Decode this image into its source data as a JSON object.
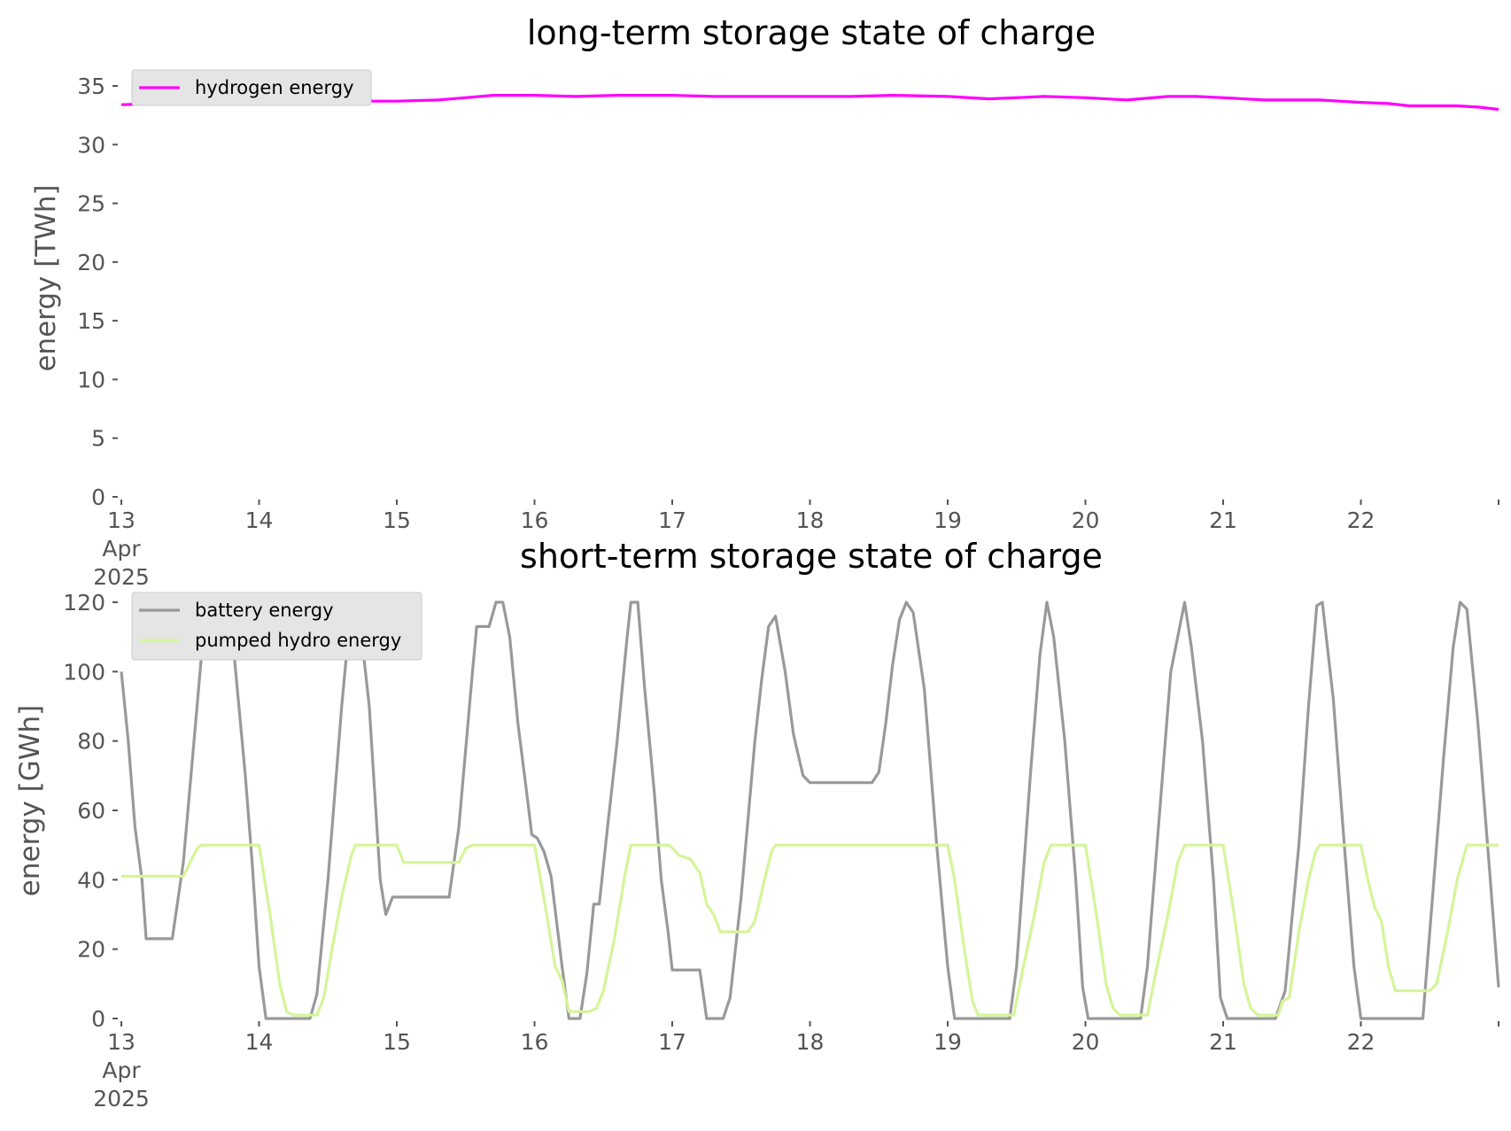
{
  "chart_data": [
    {
      "type": "line",
      "title": "long-term storage state of charge",
      "xlabel": "",
      "ylabel": "energy [TWh]",
      "ylim": [
        0,
        35
      ],
      "yticks": [
        0,
        5,
        10,
        15,
        20,
        25,
        30,
        35
      ],
      "xlim_days": [
        13,
        23
      ],
      "xticks": [
        {
          "day": 13,
          "label": [
            "13",
            "Apr",
            "2025"
          ]
        },
        {
          "day": 14,
          "label": [
            "14"
          ]
        },
        {
          "day": 15,
          "label": [
            "15"
          ]
        },
        {
          "day": 16,
          "label": [
            "16"
          ]
        },
        {
          "day": 17,
          "label": [
            "17"
          ]
        },
        {
          "day": 18,
          "label": [
            "18"
          ]
        },
        {
          "day": 19,
          "label": [
            "19"
          ]
        },
        {
          "day": 20,
          "label": [
            "20"
          ]
        },
        {
          "day": 21,
          "label": [
            "21"
          ]
        },
        {
          "day": 22,
          "label": [
            "22"
          ]
        },
        {
          "day": 23,
          "label": [
            ""
          ]
        }
      ],
      "grid": false,
      "legend_position": "top-left",
      "series": [
        {
          "name": "hydrogen energy",
          "color": "#ff00ff",
          "points": [
            [
              13.0,
              33.4
            ],
            [
              13.5,
              33.6
            ],
            [
              14.0,
              33.7
            ],
            [
              14.5,
              33.7
            ],
            [
              15.0,
              33.7
            ],
            [
              15.3,
              33.8
            ],
            [
              15.5,
              34.0
            ],
            [
              15.7,
              34.2
            ],
            [
              16.0,
              34.2
            ],
            [
              16.3,
              34.1
            ],
            [
              16.6,
              34.2
            ],
            [
              17.0,
              34.2
            ],
            [
              17.3,
              34.1
            ],
            [
              17.6,
              34.1
            ],
            [
              18.0,
              34.1
            ],
            [
              18.3,
              34.1
            ],
            [
              18.6,
              34.2
            ],
            [
              19.0,
              34.1
            ],
            [
              19.3,
              33.9
            ],
            [
              19.5,
              34.0
            ],
            [
              19.7,
              34.1
            ],
            [
              20.0,
              34.0
            ],
            [
              20.3,
              33.8
            ],
            [
              20.6,
              34.1
            ],
            [
              20.8,
              34.1
            ],
            [
              21.0,
              34.0
            ],
            [
              21.3,
              33.8
            ],
            [
              21.7,
              33.8
            ],
            [
              22.0,
              33.6
            ],
            [
              22.2,
              33.5
            ],
            [
              22.35,
              33.3
            ],
            [
              22.7,
              33.3
            ],
            [
              22.85,
              33.2
            ],
            [
              23.0,
              33.0
            ]
          ]
        }
      ]
    },
    {
      "type": "line",
      "title": "short-term storage state of charge",
      "xlabel": "",
      "ylabel": "energy [GWh]",
      "ylim": [
        0,
        120
      ],
      "yticks": [
        0,
        20,
        40,
        60,
        80,
        100,
        120
      ],
      "xlim_days": [
        13,
        23
      ],
      "xticks": [
        {
          "day": 13,
          "label": [
            "13",
            "Apr",
            "2025"
          ]
        },
        {
          "day": 14,
          "label": [
            "14"
          ]
        },
        {
          "day": 15,
          "label": [
            "15"
          ]
        },
        {
          "day": 16,
          "label": [
            "16"
          ]
        },
        {
          "day": 17,
          "label": [
            "17"
          ]
        },
        {
          "day": 18,
          "label": [
            "18"
          ]
        },
        {
          "day": 19,
          "label": [
            "19"
          ]
        },
        {
          "day": 20,
          "label": [
            "20"
          ]
        },
        {
          "day": 21,
          "label": [
            "21"
          ]
        },
        {
          "day": 22,
          "label": [
            "22"
          ]
        },
        {
          "day": 23,
          "label": [
            ""
          ]
        }
      ],
      "grid": false,
      "legend_position": "top-left",
      "series": [
        {
          "name": "battery energy",
          "color": "#999999",
          "points": [
            [
              13.0,
              100
            ],
            [
              13.05,
              80
            ],
            [
              13.1,
              55
            ],
            [
              13.15,
              40
            ],
            [
              13.18,
              23
            ],
            [
              13.37,
              23
            ],
            [
              13.45,
              45
            ],
            [
              13.55,
              90
            ],
            [
              13.6,
              113
            ],
            [
              13.65,
              120
            ],
            [
              13.75,
              120
            ],
            [
              13.8,
              113
            ],
            [
              13.9,
              70
            ],
            [
              13.95,
              45
            ],
            [
              14.0,
              15
            ],
            [
              14.05,
              0
            ],
            [
              14.25,
              0
            ],
            [
              14.37,
              0
            ],
            [
              14.42,
              7
            ],
            [
              14.5,
              40
            ],
            [
              14.6,
              90
            ],
            [
              14.67,
              120
            ],
            [
              14.72,
              119
            ],
            [
              14.8,
              90
            ],
            [
              14.88,
              40
            ],
            [
              14.92,
              30
            ],
            [
              14.97,
              35
            ],
            [
              15.38,
              35
            ],
            [
              15.45,
              55
            ],
            [
              15.55,
              100
            ],
            [
              15.58,
              113
            ],
            [
              15.67,
              113
            ],
            [
              15.72,
              120
            ],
            [
              15.77,
              120
            ],
            [
              15.82,
              110
            ],
            [
              15.88,
              85
            ],
            [
              15.95,
              63
            ],
            [
              15.98,
              53
            ],
            [
              16.02,
              52
            ],
            [
              16.07,
              48
            ],
            [
              16.12,
              41
            ],
            [
              16.2,
              15
            ],
            [
              16.25,
              0
            ],
            [
              16.33,
              0
            ],
            [
              16.38,
              13
            ],
            [
              16.43,
              33
            ],
            [
              16.47,
              33
            ],
            [
              16.53,
              55
            ],
            [
              16.6,
              80
            ],
            [
              16.67,
              109
            ],
            [
              16.7,
              120
            ],
            [
              16.75,
              120
            ],
            [
              16.8,
              95
            ],
            [
              16.87,
              65
            ],
            [
              16.92,
              40
            ],
            [
              16.97,
              25
            ],
            [
              17.0,
              14
            ],
            [
              17.2,
              14
            ],
            [
              17.25,
              0
            ],
            [
              17.37,
              0
            ],
            [
              17.42,
              6
            ],
            [
              17.5,
              35
            ],
            [
              17.6,
              80
            ],
            [
              17.65,
              98
            ],
            [
              17.7,
              113
            ],
            [
              17.75,
              116
            ],
            [
              17.82,
              100
            ],
            [
              17.88,
              82
            ],
            [
              17.95,
              70
            ],
            [
              18.0,
              68
            ],
            [
              18.45,
              68
            ],
            [
              18.5,
              71
            ],
            [
              18.55,
              85
            ],
            [
              18.6,
              102
            ],
            [
              18.65,
              115
            ],
            [
              18.7,
              120
            ],
            [
              18.75,
              117
            ],
            [
              18.83,
              95
            ],
            [
              18.92,
              50
            ],
            [
              19.0,
              15
            ],
            [
              19.05,
              0
            ],
            [
              19.45,
              0
            ],
            [
              19.5,
              15
            ],
            [
              19.6,
              70
            ],
            [
              19.67,
              105
            ],
            [
              19.72,
              120
            ],
            [
              19.77,
              110
            ],
            [
              19.85,
              80
            ],
            [
              19.93,
              40
            ],
            [
              19.98,
              9
            ],
            [
              20.02,
              0
            ],
            [
              20.4,
              0
            ],
            [
              20.45,
              15
            ],
            [
              20.55,
              65
            ],
            [
              20.62,
              100
            ],
            [
              20.67,
              110
            ],
            [
              20.72,
              120
            ],
            [
              20.77,
              107
            ],
            [
              20.85,
              80
            ],
            [
              20.93,
              40
            ],
            [
              20.98,
              6
            ],
            [
              21.03,
              0
            ],
            [
              21.38,
              0
            ],
            [
              21.45,
              8
            ],
            [
              21.55,
              50
            ],
            [
              21.62,
              90
            ],
            [
              21.68,
              119
            ],
            [
              21.72,
              120
            ],
            [
              21.8,
              92
            ],
            [
              21.88,
              50
            ],
            [
              21.95,
              15
            ],
            [
              22.0,
              0
            ],
            [
              22.45,
              0
            ],
            [
              22.52,
              35
            ],
            [
              22.6,
              75
            ],
            [
              22.67,
              107
            ],
            [
              22.72,
              120
            ],
            [
              22.77,
              118
            ],
            [
              22.85,
              85
            ],
            [
              22.93,
              45
            ],
            [
              23.0,
              9
            ]
          ]
        },
        {
          "name": "pumped hydro energy",
          "color": "#d4f599",
          "points": [
            [
              13.0,
              41
            ],
            [
              13.45,
              41
            ],
            [
              13.55,
              49
            ],
            [
              13.58,
              50
            ],
            [
              14.0,
              50
            ],
            [
              14.08,
              30
            ],
            [
              14.15,
              10
            ],
            [
              14.2,
              2
            ],
            [
              14.25,
              1
            ],
            [
              14.42,
              1
            ],
            [
              14.47,
              6
            ],
            [
              14.53,
              20
            ],
            [
              14.6,
              35
            ],
            [
              14.67,
              47
            ],
            [
              14.7,
              50
            ],
            [
              15.0,
              50
            ],
            [
              15.05,
              45
            ],
            [
              15.45,
              45
            ],
            [
              15.5,
              49
            ],
            [
              15.55,
              50
            ],
            [
              16.0,
              50
            ],
            [
              16.08,
              32
            ],
            [
              16.15,
              15
            ],
            [
              16.2,
              11
            ],
            [
              16.25,
              2
            ],
            [
              16.4,
              2
            ],
            [
              16.45,
              3
            ],
            [
              16.5,
              8
            ],
            [
              16.58,
              23
            ],
            [
              16.65,
              40
            ],
            [
              16.7,
              50
            ],
            [
              16.98,
              50
            ],
            [
              17.05,
              47
            ],
            [
              17.13,
              46
            ],
            [
              17.2,
              42
            ],
            [
              17.25,
              33
            ],
            [
              17.3,
              30
            ],
            [
              17.35,
              25
            ],
            [
              17.55,
              25
            ],
            [
              17.6,
              28
            ],
            [
              17.67,
              40
            ],
            [
              17.72,
              48
            ],
            [
              17.75,
              50
            ],
            [
              19.0,
              50
            ],
            [
              19.05,
              40
            ],
            [
              19.12,
              20
            ],
            [
              19.18,
              5
            ],
            [
              19.22,
              1
            ],
            [
              19.48,
              1
            ],
            [
              19.55,
              15
            ],
            [
              19.63,
              30
            ],
            [
              19.7,
              45
            ],
            [
              19.75,
              50
            ],
            [
              20.0,
              50
            ],
            [
              20.08,
              30
            ],
            [
              20.15,
              10
            ],
            [
              20.2,
              3
            ],
            [
              20.25,
              1
            ],
            [
              20.45,
              1
            ],
            [
              20.52,
              15
            ],
            [
              20.6,
              30
            ],
            [
              20.67,
              45
            ],
            [
              20.72,
              50
            ],
            [
              21.0,
              50
            ],
            [
              21.08,
              30
            ],
            [
              21.15,
              10
            ],
            [
              21.2,
              3
            ],
            [
              21.25,
              1
            ],
            [
              21.4,
              1
            ],
            [
              21.43,
              5
            ],
            [
              21.48,
              6
            ],
            [
              21.55,
              25
            ],
            [
              21.62,
              40
            ],
            [
              21.67,
              48
            ],
            [
              21.7,
              50
            ],
            [
              22.0,
              50
            ],
            [
              22.05,
              40
            ],
            [
              22.1,
              32
            ],
            [
              22.15,
              28
            ],
            [
              22.2,
              15
            ],
            [
              22.25,
              8
            ],
            [
              22.5,
              8
            ],
            [
              22.55,
              10
            ],
            [
              22.63,
              25
            ],
            [
              22.7,
              40
            ],
            [
              22.77,
              50
            ],
            [
              23.0,
              50
            ]
          ]
        }
      ]
    }
  ]
}
